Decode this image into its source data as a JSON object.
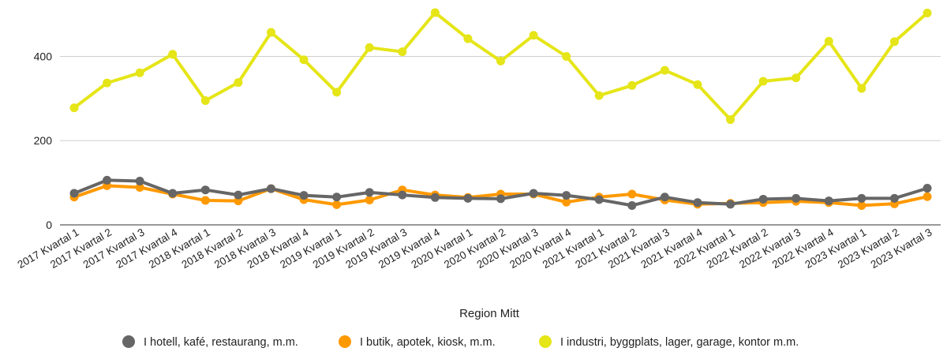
{
  "chart_data": {
    "type": "line",
    "title": "",
    "xlabel": "Region Mitt",
    "ylabel": "",
    "ylim": [
      0,
      520
    ],
    "yticks": [
      0,
      200,
      400
    ],
    "grid": true,
    "legend_position": "bottom",
    "categories": [
      "2017 Kvartal 1",
      "2017 Kvartal 2",
      "2017 Kvartal 3",
      "2017 Kvartal 4",
      "2018 Kvartal 1",
      "2018 Kvartal 2",
      "2018 Kvartal 3",
      "2018 Kvartal 4",
      "2019 Kvartal 1",
      "2019 Kvartal 2",
      "2019 Kvartal 3",
      "2019 Kvartal 4",
      "2020 Kvartal 1",
      "2020 Kvartal 2",
      "2020 Kvartal 3",
      "2020 Kvartal 4",
      "2021 Kvartal 1",
      "2021 Kvartal 2",
      "2021 Kvartal 3",
      "2021 Kvartal 4",
      "2022 Kvartal 1",
      "2022 Kvartal 2",
      "2022 Kvartal 3",
      "2022 Kvartal 4",
      "2023 Kvartal 1",
      "2023 Kvartal 2",
      "2023 Kvartal 3"
    ],
    "series": [
      {
        "name": "I hotell, kafé, restaurang, m.m.",
        "color": "#666666",
        "values": [
          75,
          106,
          104,
          75,
          83,
          71,
          86,
          70,
          66,
          77,
          71,
          65,
          63,
          62,
          75,
          70,
          60,
          46,
          66,
          53,
          49,
          61,
          63,
          57,
          63,
          63,
          87
        ]
      },
      {
        "name": "I butik, apotek, kiosk, m.m.",
        "color": "#ff9900",
        "values": [
          66,
          93,
          89,
          73,
          58,
          57,
          86,
          60,
          48,
          59,
          83,
          71,
          65,
          73,
          73,
          54,
          66,
          73,
          59,
          49,
          51,
          53,
          56,
          53,
          46,
          50,
          67
        ]
      },
      {
        "name": "I industri, byggplats, lager, garage, kontor m.m.",
        "color": "#e5e518",
        "values": [
          278,
          337,
          361,
          405,
          295,
          338,
          457,
          392,
          315,
          421,
          411,
          504,
          442,
          389,
          450,
          400,
          307,
          331,
          367,
          333,
          250,
          341,
          349,
          436,
          324,
          435,
          503
        ]
      }
    ]
  }
}
